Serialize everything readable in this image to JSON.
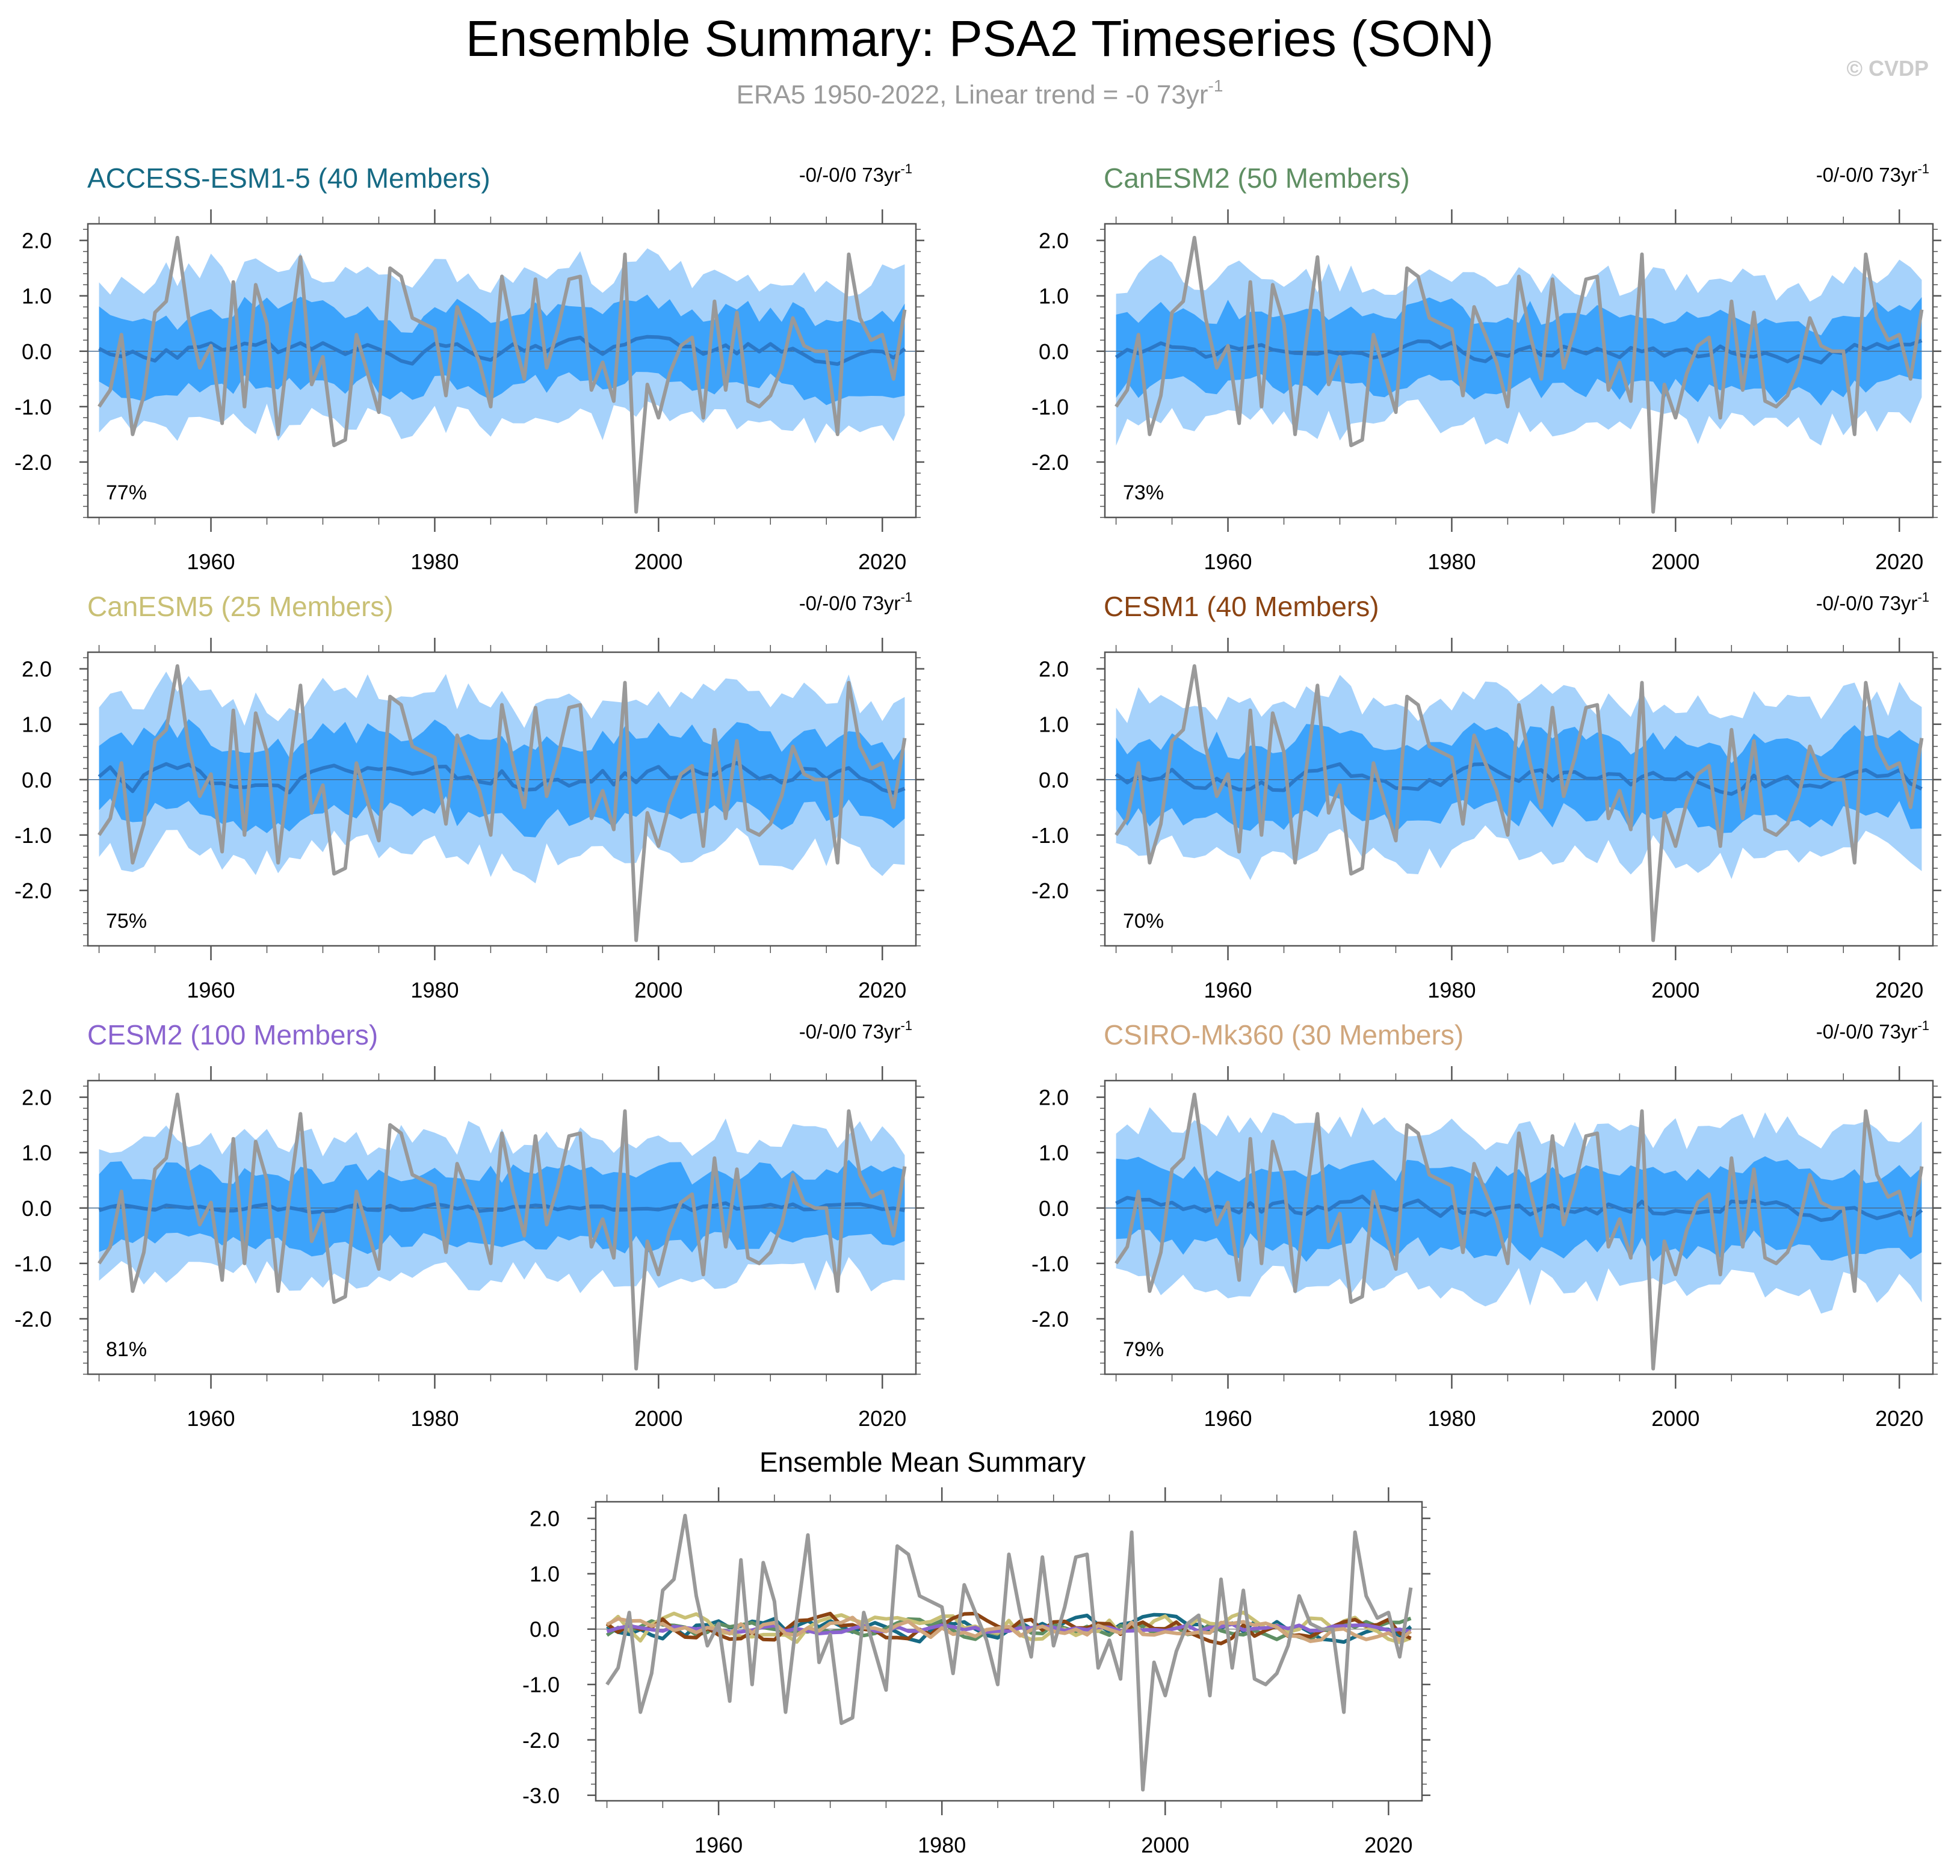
{
  "title": "Ensemble Summary: PSA2 Timeseries (SON)",
  "subtitle_prefix": "ERA5 1950-2022, Linear trend = -0 73yr",
  "subtitle_exp": "-1",
  "watermark": "© CVDP",
  "colors": {
    "outer_band": "#a6d2fb",
    "inner_band": "#3ca3fb",
    "ens_mean": "#2b78c7",
    "obs": "#999999",
    "axis": "#555555"
  },
  "icons": {
    "watermark": "copyright-glyph"
  },
  "chart_data": [
    {
      "type": "area",
      "panel_id": "p1",
      "title": "ACCESS-ESM1-5 (40 Members)",
      "title_color": "#166a84",
      "trend_prefix": "-0/-0/0 73yr",
      "trend_exp": "-1",
      "percent_label": "77%",
      "x_start": 1950,
      "x_end": 2022,
      "xlim": [
        1949,
        2023
      ],
      "ylim": [
        -3.0,
        2.3
      ],
      "xticks": [
        "1960",
        "1980",
        "2000",
        "2020"
      ],
      "yticks": [
        "2.0",
        "1.0",
        "0.0",
        "-1.0",
        "-2.0"
      ],
      "seed": 11,
      "mean_amp": 0.16,
      "outer_half": 1.35,
      "inner_half": 0.68
    },
    {
      "type": "area",
      "panel_id": "p2",
      "title": "CanESM2 (50 Members)",
      "title_color": "#5f8f63",
      "trend_prefix": "-0/-0/0 73yr",
      "trend_exp": "-1",
      "percent_label": "73%",
      "x_start": 1950,
      "x_end": 2022,
      "xlim": [
        1949,
        2023
      ],
      "ylim": [
        -3.0,
        2.3
      ],
      "xticks": [
        "1960",
        "1980",
        "2000",
        "2020"
      ],
      "yticks": [
        "2.0",
        "1.0",
        "0.0",
        "-1.0",
        "-2.0"
      ],
      "seed": 23,
      "mean_amp": 0.14,
      "outer_half": 1.3,
      "inner_half": 0.66
    },
    {
      "type": "area",
      "panel_id": "p3",
      "title": "CanESM5 (25 Members)",
      "title_color": "#c9c075",
      "trend_prefix": "-0/-0/0 73yr",
      "trend_exp": "-1",
      "percent_label": "75%",
      "x_start": 1950,
      "x_end": 2022,
      "xlim": [
        1949,
        2023
      ],
      "ylim": [
        -3.0,
        2.3
      ],
      "xticks": [
        "1960",
        "1980",
        "2000",
        "2020"
      ],
      "yticks": [
        "2.0",
        "1.0",
        "0.0",
        "-1.0",
        "-2.0"
      ],
      "seed": 37,
      "mean_amp": 0.2,
      "outer_half": 1.4,
      "inner_half": 0.7
    },
    {
      "type": "area",
      "panel_id": "p4",
      "title": "CESM1 (40 Members)",
      "title_color": "#8b4312",
      "trend_prefix": "-0/-0/0 73yr",
      "trend_exp": "-1",
      "percent_label": "70%",
      "x_start": 1950,
      "x_end": 2022,
      "xlim": [
        1949,
        2023
      ],
      "ylim": [
        -3.0,
        2.3
      ],
      "xticks": [
        "1960",
        "1980",
        "2000",
        "2020"
      ],
      "yticks": [
        "2.0",
        "1.0",
        "0.0",
        "-1.0",
        "-2.0"
      ],
      "seed": 41,
      "mean_amp": 0.17,
      "outer_half": 1.35,
      "inner_half": 0.68
    },
    {
      "type": "area",
      "panel_id": "p5",
      "title": "CESM2 (100 Members)",
      "title_color": "#8a63cf",
      "trend_prefix": "-0/-0/0 73yr",
      "trend_exp": "-1",
      "percent_label": "81%",
      "x_start": 1950,
      "x_end": 2022,
      "xlim": [
        1949,
        2023
      ],
      "ylim": [
        -3.0,
        2.3
      ],
      "xticks": [
        "1960",
        "1980",
        "2000",
        "2020"
      ],
      "yticks": [
        "2.0",
        "1.0",
        "0.0",
        "-1.0",
        "-2.0"
      ],
      "seed": 53,
      "mean_amp": 0.08,
      "outer_half": 1.25,
      "inner_half": 0.64
    },
    {
      "type": "area",
      "panel_id": "p6",
      "title": "CSIRO-Mk360 (30 Members)",
      "title_color": "#d0a67c",
      "trend_prefix": "-0/-0/0 73yr",
      "trend_exp": "-1",
      "percent_label": "79%",
      "x_start": 1950,
      "x_end": 2022,
      "xlim": [
        1949,
        2023
      ],
      "ylim": [
        -3.0,
        2.3
      ],
      "xticks": [
        "1960",
        "1980",
        "2000",
        "2020"
      ],
      "yticks": [
        "2.0",
        "1.0",
        "0.0",
        "-1.0",
        "-2.0"
      ],
      "seed": 67,
      "mean_amp": 0.16,
      "outer_half": 1.4,
      "inner_half": 0.7
    },
    {
      "type": "line",
      "panel_id": "p7",
      "title": "Ensemble Mean Summary",
      "title_color": "#000000",
      "x_start": 1950,
      "x_end": 2022,
      "xlim": [
        1949,
        2023
      ],
      "ylim": [
        -3.1,
        2.3
      ],
      "xticks": [
        "1960",
        "1980",
        "2000",
        "2020"
      ],
      "yticks": [
        "2.0",
        "1.0",
        "0.0",
        "-1.0",
        "-2.0",
        "-3.0"
      ]
    }
  ],
  "observed_series": {
    "name": "ERA5",
    "start_year": 1950,
    "values": [
      -1.0,
      -0.7,
      0.3,
      -1.5,
      -0.8,
      0.7,
      0.9,
      2.05,
      0.6,
      -0.3,
      0.1,
      -1.3,
      1.25,
      -1.0,
      1.2,
      0.5,
      -1.5,
      0.2,
      1.7,
      -0.6,
      -0.1,
      -1.7,
      -1.6,
      0.3,
      -0.4,
      -1.1,
      1.5,
      1.35,
      0.6,
      0.5,
      0.4,
      -0.8,
      0.8,
      0.3,
      -0.2,
      -1.0,
      1.35,
      0.3,
      -0.5,
      1.3,
      -0.3,
      0.4,
      1.3,
      1.35,
      -0.7,
      -0.2,
      -0.9,
      1.75,
      -2.9,
      -0.6,
      -1.2,
      -0.4,
      0.1,
      0.25,
      -1.2,
      0.9,
      -0.7,
      0.7,
      -0.9,
      -1.0,
      -0.8,
      -0.3,
      0.6,
      0.1,
      0.0,
      0.0,
      -1.5,
      1.75,
      0.6,
      0.2,
      0.3,
      -0.5,
      0.75
    ]
  },
  "ensemble_mean_series": [
    {
      "name": "ACCESS-ESM1-5",
      "color": "#166a84",
      "seed": 11,
      "amp": 0.16
    },
    {
      "name": "CanESM2",
      "color": "#5f8f63",
      "seed": 23,
      "amp": 0.14
    },
    {
      "name": "CanESM5",
      "color": "#c9c075",
      "seed": 37,
      "amp": 0.2
    },
    {
      "name": "CESM1",
      "color": "#8b4312",
      "seed": 41,
      "amp": 0.17
    },
    {
      "name": "CESM2",
      "color": "#8a63cf",
      "seed": 53,
      "amp": 0.08
    },
    {
      "name": "CSIRO-Mk360",
      "color": "#d0a67c",
      "seed": 67,
      "amp": 0.16
    }
  ]
}
